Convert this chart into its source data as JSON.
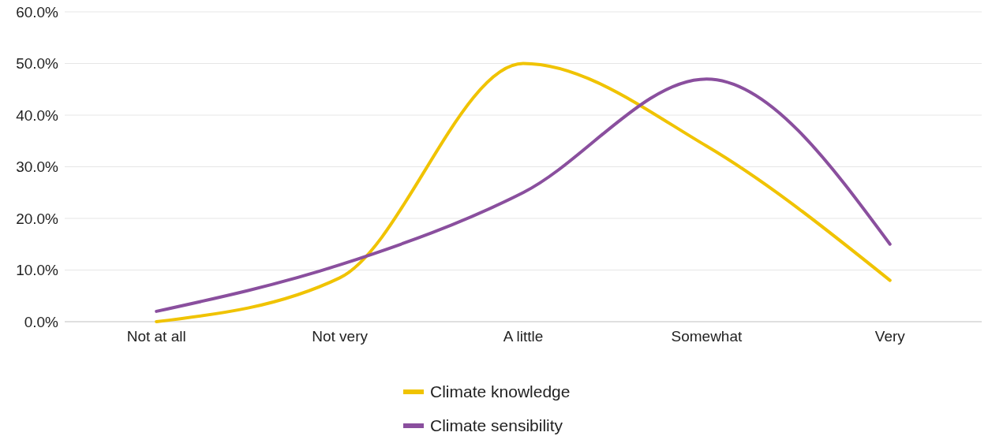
{
  "chart_data": {
    "type": "line",
    "categories": [
      "Not at all",
      "Not very",
      "A little",
      "Somewhat",
      "Very"
    ],
    "series": [
      {
        "name": "Climate knowledge",
        "color": "#f0c300",
        "values": [
          0,
          8.5,
          50,
          34,
          8
        ]
      },
      {
        "name": "Climate sensibility",
        "color": "#8a4f9e",
        "values": [
          2,
          11,
          25,
          47,
          15
        ]
      }
    ],
    "ylim": [
      0,
      60
    ],
    "yticks": [
      {
        "value": 0,
        "label": "0.0%"
      },
      {
        "value": 10,
        "label": "10.0%"
      },
      {
        "value": 20,
        "label": "20.0%"
      },
      {
        "value": 30,
        "label": "30.0%"
      },
      {
        "value": 40,
        "label": "40.0%"
      },
      {
        "value": 50,
        "label": "50.0%"
      },
      {
        "value": 60,
        "label": "60.0%"
      }
    ],
    "grid": "y",
    "legend": "bottom",
    "marker": "none",
    "line_style": "solid"
  }
}
